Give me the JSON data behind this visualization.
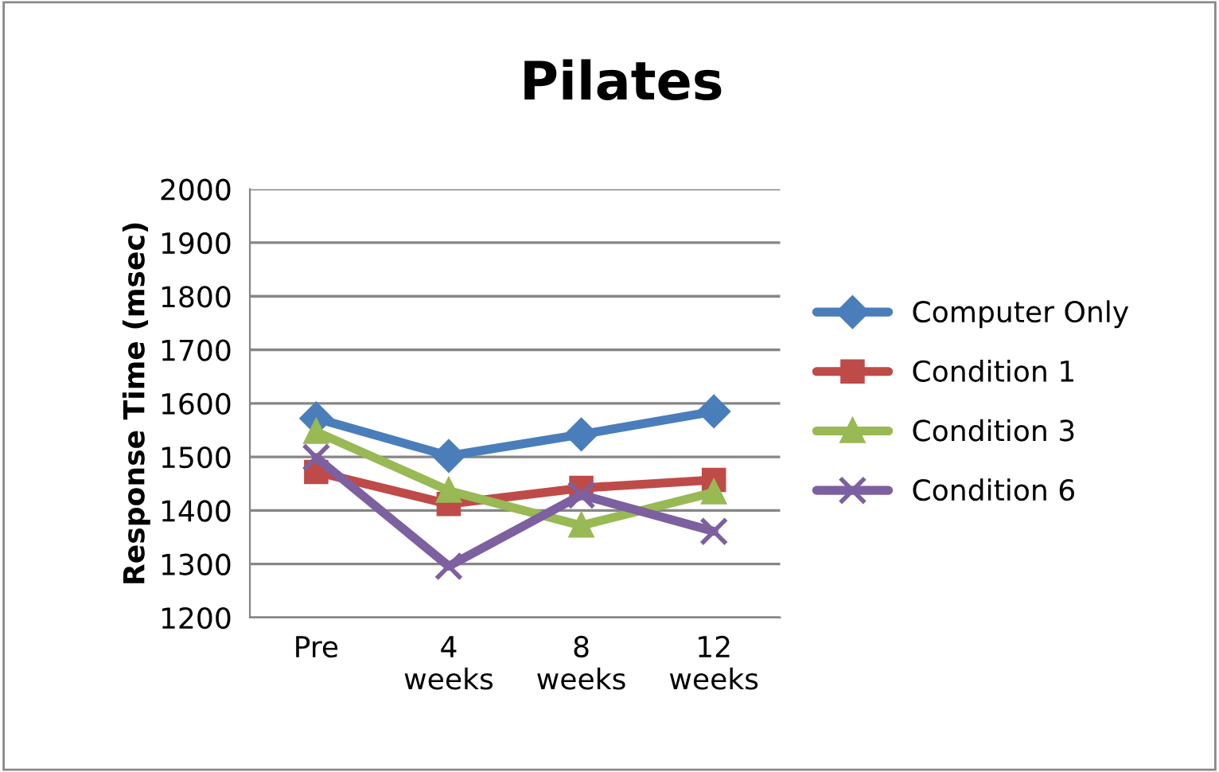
{
  "chart_data": {
    "type": "line",
    "title": "Pilates",
    "ylabel": "Response Time (msec)",
    "categories": [
      "Pre",
      "4\nweeks",
      "8\nweeks",
      "12\nweeks"
    ],
    "series": [
      {
        "name": "Computer Only",
        "color": "#4a7ebb",
        "marker": "diamond",
        "values": [
          1572,
          1502,
          1542,
          1585
        ]
      },
      {
        "name": "Condition 1",
        "color": "#be4b48",
        "marker": "square",
        "values": [
          1472,
          1412,
          1442,
          1457
        ]
      },
      {
        "name": "Condition 3",
        "color": "#98b954",
        "marker": "triangle",
        "values": [
          1547,
          1437,
          1372,
          1434
        ]
      },
      {
        "name": "Condition 6",
        "color": "#7d60a0",
        "marker": "cross",
        "values": [
          1499,
          1296,
          1429,
          1361
        ]
      }
    ],
    "ylim": [
      1200,
      2000
    ],
    "yticks": [
      1200,
      1300,
      1400,
      1500,
      1600,
      1700,
      1800,
      1900,
      2000
    ],
    "grid": "y",
    "legend": "right",
    "line_style": "solid"
  }
}
